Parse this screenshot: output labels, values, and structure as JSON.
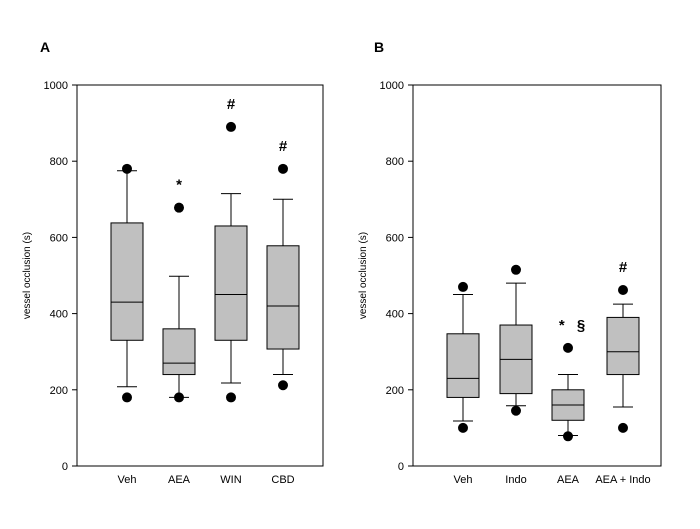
{
  "chart_data": [
    {
      "type": "box",
      "panel_label": "A",
      "ylabel": "vessel occlusion (s)",
      "ylim": [
        0,
        1000
      ],
      "yticks": [
        0,
        200,
        400,
        600,
        800,
        1000
      ],
      "categories": [
        "Veh",
        "AEA",
        "WIN",
        "CBD"
      ],
      "boxes": [
        {
          "category": "Veh",
          "min": 208,
          "q1": 330,
          "median": 430,
          "q3": 638,
          "max": 775,
          "outliers": [
            180,
            780
          ],
          "annotation": ""
        },
        {
          "category": "AEA",
          "min": 180,
          "q1": 240,
          "median": 270,
          "q3": 360,
          "max": 498,
          "outliers": [
            180,
            678
          ],
          "annotation": "*"
        },
        {
          "category": "WIN",
          "min": 218,
          "q1": 330,
          "median": 450,
          "q3": 630,
          "max": 715,
          "outliers": [
            180,
            890
          ],
          "annotation": "#"
        },
        {
          "category": "CBD",
          "min": 240,
          "q1": 307,
          "median": 420,
          "q3": 578,
          "max": 700,
          "outliers": [
            212,
            780
          ],
          "annotation": "#"
        }
      ]
    },
    {
      "type": "box",
      "panel_label": "B",
      "ylabel": "vessel occlusion (s)",
      "ylim": [
        0,
        1000
      ],
      "yticks": [
        0,
        200,
        400,
        600,
        800,
        1000
      ],
      "categories": [
        "Veh",
        "Indo",
        "AEA",
        "AEA + Indo"
      ],
      "boxes": [
        {
          "category": "Veh",
          "min": 118,
          "q1": 180,
          "median": 230,
          "q3": 347,
          "max": 450,
          "outliers": [
            100,
            470
          ],
          "annotation": ""
        },
        {
          "category": "Indo",
          "min": 158,
          "q1": 190,
          "median": 280,
          "q3": 370,
          "max": 480,
          "outliers": [
            145,
            515
          ],
          "annotation": ""
        },
        {
          "category": "AEA",
          "min": 80,
          "q1": 120,
          "median": 160,
          "q3": 200,
          "max": 240,
          "outliers": [
            78,
            310
          ],
          "annotation": "* §"
        },
        {
          "category": "AEA + Indo",
          "min": 155,
          "q1": 240,
          "median": 300,
          "q3": 390,
          "max": 425,
          "outliers": [
            100,
            462
          ],
          "annotation": "#"
        }
      ]
    }
  ]
}
